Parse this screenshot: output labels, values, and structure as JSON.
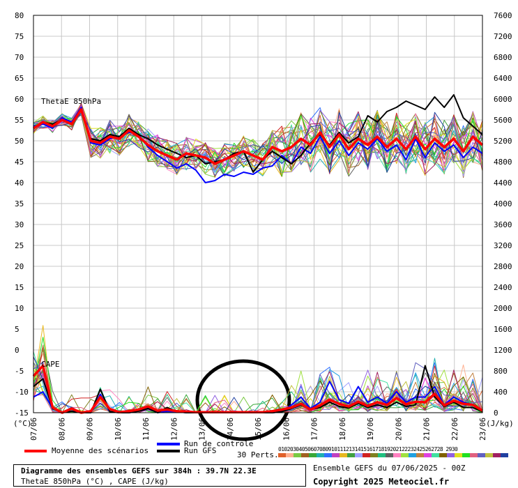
{
  "chart_data": {
    "type": "line",
    "title": "Diagramme des ensembles GEFS sur 384h : 39.7N 22.3E",
    "subtitle": "ThetaE 850hPa (°C) , CAPE (J/kg)",
    "x_tick_labels": [
      "07/06",
      "08/06",
      "09/06",
      "10/06",
      "11/06",
      "12/06",
      "13/06",
      "14/06",
      "15/06",
      "16/06",
      "17/06",
      "18/06",
      "19/06",
      "20/06",
      "21/06",
      "22/06",
      "23/06"
    ],
    "left_axis": {
      "unit_label": "(°C)",
      "ticks": [
        80,
        75,
        70,
        65,
        60,
        55,
        50,
        45,
        40,
        35,
        30,
        25,
        20,
        15,
        10,
        5,
        0,
        -5,
        -10,
        -15
      ],
      "tick_text": [
        "80",
        "75",
        "70",
        "65",
        "60",
        "55",
        "50",
        "45",
        "40",
        "35",
        "30",
        "25",
        "20",
        "15",
        "10",
        "5",
        "0",
        "-5",
        "-10",
        "-15"
      ],
      "range": [
        -15,
        80
      ]
    },
    "right_axis": {
      "unit_label": "(J/kg)",
      "ticks": [
        7600,
        7200,
        6800,
        6400,
        6000,
        5600,
        5200,
        4800,
        4400,
        4000,
        3600,
        3200,
        2800,
        2400,
        2000,
        1600,
        1200,
        800,
        400,
        0
      ],
      "range": [
        0,
        7600
      ]
    },
    "annotations": [
      "ThetaE 850hPa",
      "CAPE"
    ],
    "thetae_series": {
      "mean": [
        53.0,
        54.5,
        53.5,
        55.0,
        54.0,
        57.5,
        50.0,
        49.5,
        51.0,
        50.5,
        52.5,
        51.0,
        49.0,
        47.5,
        46.5,
        45.5,
        47.0,
        46.5,
        46.0,
        44.5,
        45.5,
        46.5,
        47.5,
        46.5,
        45.5,
        48.5,
        47.5,
        48.5,
        50.5,
        49.0,
        52.0,
        48.5,
        51.5,
        48.0,
        50.5,
        49.0,
        51.0,
        48.5,
        50.5,
        48.0,
        51.0,
        48.0,
        50.5,
        48.5,
        50.5,
        47.5,
        51.0,
        49.0
      ],
      "control": [
        53.5,
        54.0,
        53.0,
        55.5,
        54.5,
        58.0,
        49.5,
        49.0,
        50.5,
        51.0,
        52.0,
        51.5,
        48.5,
        46.5,
        45.0,
        43.5,
        44.5,
        43.0,
        40.0,
        40.5,
        42.0,
        41.5,
        42.5,
        42.0,
        43.5,
        44.0,
        46.5,
        44.5,
        48.5,
        47.0,
        51.0,
        47.0,
        50.0,
        46.5,
        49.5,
        48.0,
        50.5,
        47.5,
        49.0,
        45.5,
        50.5,
        46.0,
        49.5,
        47.5,
        49.0,
        46.0,
        48.5,
        47.0
      ],
      "gfs": [
        53.0,
        54.5,
        54.0,
        55.0,
        54.0,
        57.5,
        50.5,
        50.0,
        51.5,
        51.0,
        53.0,
        51.5,
        50.5,
        49.0,
        48.0,
        47.0,
        46.0,
        46.5,
        44.5,
        45.0,
        45.5,
        47.0,
        47.5,
        42.5,
        45.5,
        47.5,
        46.0,
        44.5,
        46.5,
        49.5,
        51.5,
        49.0,
        52.0,
        49.5,
        51.0,
        56.0,
        54.5,
        57.0,
        58.0,
        59.5,
        58.5,
        57.5,
        60.5,
        58.0,
        61.0,
        55.5,
        53.5,
        51.5
      ]
    },
    "cape_series": {
      "mean": [
        700,
        900,
        100,
        0,
        80,
        0,
        30,
        300,
        70,
        10,
        30,
        60,
        120,
        40,
        60,
        30,
        20,
        10,
        10,
        10,
        10,
        10,
        10,
        10,
        10,
        30,
        60,
        100,
        170,
        60,
        140,
        250,
        170,
        120,
        210,
        130,
        200,
        150,
        280,
        160,
        210,
        200,
        360,
        140,
        230,
        170,
        150,
        40
      ],
      "control": [
        300,
        400,
        80,
        0,
        30,
        0,
        0,
        350,
        20,
        0,
        0,
        30,
        80,
        0,
        30,
        20,
        0,
        0,
        0,
        0,
        0,
        0,
        0,
        0,
        0,
        0,
        20,
        150,
        300,
        80,
        200,
        600,
        250,
        180,
        500,
        200,
        300,
        180,
        400,
        200,
        300,
        300,
        500,
        150,
        300,
        200,
        150,
        30
      ],
      "gfs": [
        500,
        650,
        80,
        0,
        30,
        0,
        0,
        450,
        20,
        0,
        0,
        30,
        80,
        0,
        100,
        20,
        0,
        0,
        0,
        0,
        0,
        0,
        0,
        0,
        0,
        0,
        20,
        80,
        150,
        60,
        100,
        200,
        120,
        90,
        180,
        100,
        150,
        100,
        200,
        120,
        150,
        900,
        300,
        120,
        200,
        100,
        100,
        20
      ]
    },
    "pert_count": 30,
    "pert_colors": [
      "#e0602a",
      "#ffb090",
      "#7ac943",
      "#a06020",
      "#38a838",
      "#20b0b0",
      "#3070ff",
      "#c040c0",
      "#e8b820",
      "#40a040",
      "#a0a0ff",
      "#d02020",
      "#808020",
      "#20c080",
      "#606060",
      "#ff80c0",
      "#a0e040",
      "#20a0e0",
      "#c08040",
      "#e040e0",
      "#40e0a0",
      "#806000",
      "#9060e0",
      "#e0e020",
      "#20e020",
      "#e06080",
      "#6060c0",
      "#c0c040",
      "#a02060",
      "#2040a0"
    ]
  },
  "legend": {
    "mean_label": "Moyenne des scénarios",
    "control_label": "Run de controle",
    "gfs_label": "Run GFS",
    "perts_label": "30 Perts.",
    "pert_numbers": "01020304050607080910111213141516171819202122232425262728 2930",
    "colors": {
      "mean": "#ff0000",
      "control": "#0000ff",
      "gfs": "#000000"
    }
  },
  "footer": {
    "title": "Diagramme des ensembles GEFS sur 384h : 39.7N 22.3E",
    "subtitle": "ThetaE 850hPa (°C) , CAPE (J/kg)",
    "ensemble_line": "Ensemble GEFS du 07/06/2025 - 00Z",
    "copyright": "Copyright 2025 Meteociel.fr"
  }
}
